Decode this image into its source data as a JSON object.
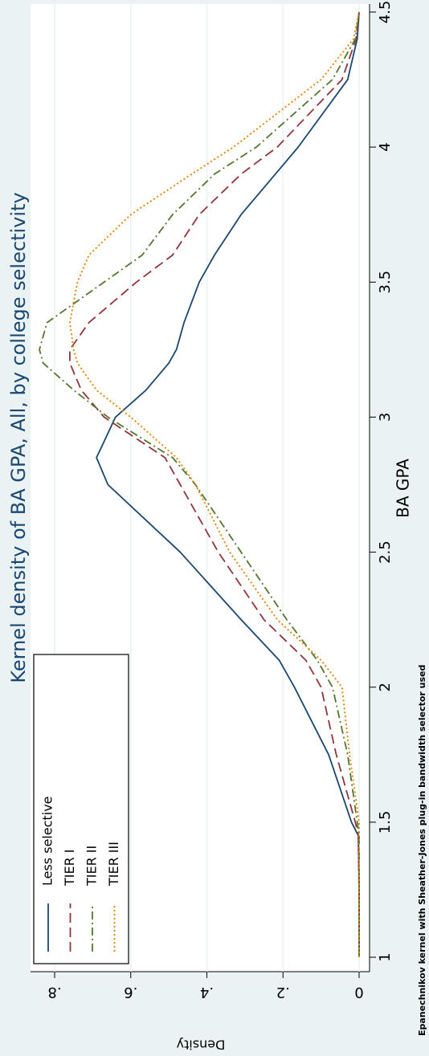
{
  "chart_data": {
    "type": "line",
    "title": "Kernel density of BA GPA, All, by college selectivity",
    "x_label": "BA GPA",
    "y_label": "Density",
    "note": "Epanechnikov kernel with Sheather-Jones plug-in bandwidth selector used",
    "x": [
      1,
      1.25,
      1.45,
      1.5,
      1.75,
      2,
      2.1,
      2.25,
      2.5,
      2.75,
      2.85,
      3,
      3.1,
      3.2,
      3.25,
      3.35,
      3.5,
      3.6,
      3.75,
      3.9,
      4,
      4.25,
      4.4,
      4.5
    ],
    "series": [
      {
        "name": "Less selective",
        "color": "#1a476f",
        "dash": "none",
        "values": [
          0,
          0,
          0.002,
          0.02,
          0.08,
          0.17,
          0.21,
          0.31,
          0.47,
          0.66,
          0.69,
          0.64,
          0.56,
          0.5,
          0.48,
          0.46,
          0.42,
          0.38,
          0.31,
          0.22,
          0.16,
          0.03,
          0.005,
          0
        ]
      },
      {
        "name": "TIER I",
        "color": "#90353b",
        "dash": "12,6",
        "values": [
          0,
          0,
          0.002,
          0.01,
          0.06,
          0.1,
          0.14,
          0.25,
          0.37,
          0.47,
          0.51,
          0.67,
          0.73,
          0.76,
          0.76,
          0.71,
          0.585,
          0.49,
          0.42,
          0.31,
          0.215,
          0.045,
          0.008,
          0
        ]
      },
      {
        "name": "TIER II",
        "color": "#55752f",
        "dash": "10,4,2,4",
        "values": [
          0,
          0,
          0,
          0.005,
          0.03,
          0.07,
          0.11,
          0.19,
          0.31,
          0.43,
          0.49,
          0.66,
          0.75,
          0.83,
          0.84,
          0.82,
          0.67,
          0.57,
          0.49,
          0.38,
          0.27,
          0.07,
          0.01,
          0
        ]
      },
      {
        "name": "TIER III",
        "color": "#e37e00",
        "dash": "2,3",
        "values": [
          0,
          0,
          0,
          0,
          0.025,
          0.045,
          0.1,
          0.215,
          0.34,
          0.43,
          0.48,
          0.6,
          0.69,
          0.74,
          0.75,
          0.76,
          0.74,
          0.71,
          0.6,
          0.44,
          0.33,
          0.1,
          0.015,
          0
        ]
      }
    ],
    "xlim": [
      1,
      4.5
    ],
    "xticks": [
      1,
      1.5,
      2,
      2.5,
      3,
      3.5,
      4,
      4.5
    ],
    "ylim": [
      0,
      0.8
    ],
    "yticks": [
      0,
      {
        "value": 0.2,
        "label": ".2"
      },
      {
        "value": 0.4,
        "label": ".4"
      },
      {
        "value": 0.6,
        "label": ".6"
      },
      {
        "value": 0.8,
        "label": ".8"
      }
    ],
    "legend": "top-left",
    "grid": true
  }
}
